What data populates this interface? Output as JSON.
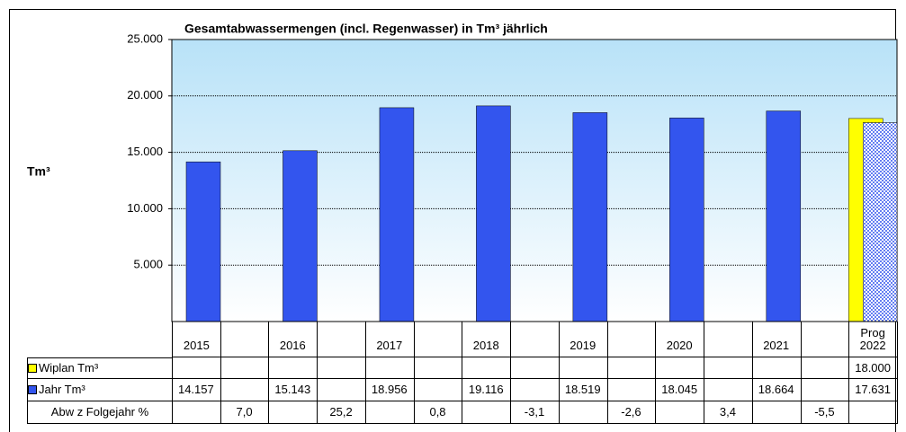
{
  "chart_data": {
    "type": "bar",
    "title": "Gesamtabwassermengen (incl. Regenwasser) in Tm³ jährlich",
    "y_label": "Tm³",
    "categories": [
      "2015",
      null,
      "2016",
      null,
      "2017",
      null,
      "2018",
      null,
      "2019",
      null,
      "2020",
      null,
      "2021",
      null,
      "Prog 2022"
    ],
    "series": [
      {
        "name": "Wiplan Tm³",
        "color": "#ffff00",
        "values": [
          null,
          null,
          null,
          null,
          null,
          null,
          null,
          null,
          null,
          null,
          null,
          null,
          null,
          null,
          18000
        ],
        "value_labels": [
          null,
          null,
          null,
          null,
          null,
          null,
          null,
          null,
          null,
          null,
          null,
          null,
          null,
          null,
          "18.000"
        ]
      },
      {
        "name": "Jahr Tm³",
        "color": "#3355ee",
        "values": [
          14157,
          null,
          15143,
          null,
          18956,
          null,
          19116,
          null,
          18519,
          null,
          18045,
          null,
          18664,
          null,
          17631
        ],
        "value_labels": [
          "14.157",
          null,
          "15.143",
          null,
          "18.956",
          null,
          "19.116",
          null,
          "18.519",
          null,
          "18.045",
          null,
          "18.664",
          null,
          "17.631"
        ]
      }
    ],
    "change_row": {
      "name": "Abw z Folgejahr %",
      "values": [
        null,
        7.0,
        null,
        25.2,
        null,
        0.8,
        null,
        -3.1,
        null,
        -2.6,
        null,
        3.4,
        null,
        -5.5,
        null
      ],
      "value_labels": [
        null,
        "7,0",
        null,
        "25,2",
        null,
        "0,8",
        null,
        "-3,1",
        null,
        "-2,6",
        null,
        "3,4",
        null,
        "-5,5",
        null
      ]
    },
    "ylim": [
      0,
      25000
    ],
    "yticks": [
      {
        "value": 5000,
        "label": "5.000"
      },
      {
        "value": 10000,
        "label": "10.000"
      },
      {
        "value": 15000,
        "label": "15.000"
      },
      {
        "value": 20000,
        "label": "20.000"
      },
      {
        "value": 25000,
        "label": "25.000"
      }
    ],
    "grid": true
  }
}
